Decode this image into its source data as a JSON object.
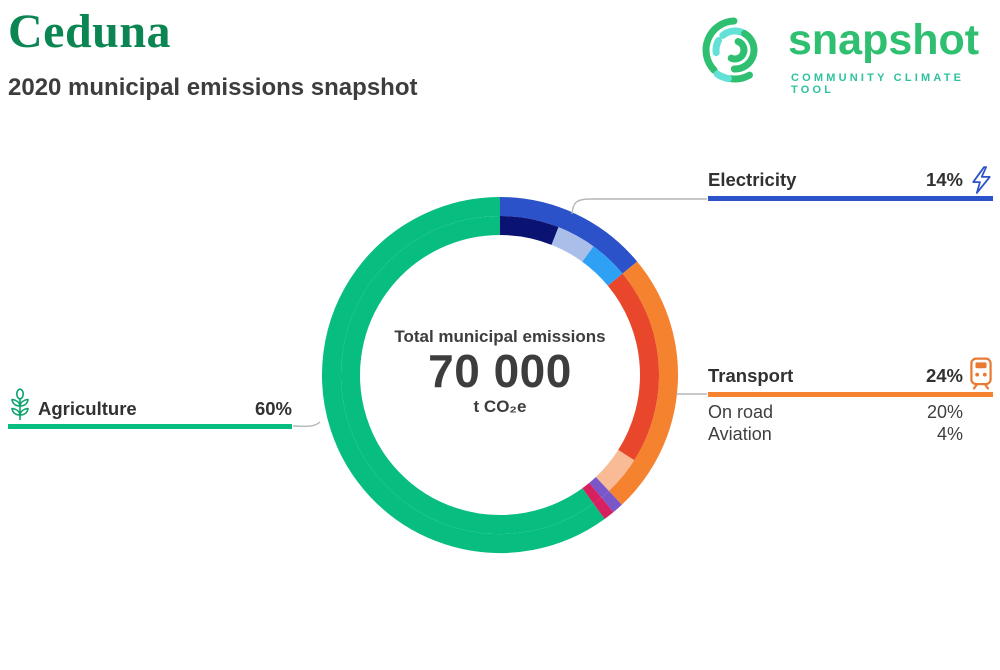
{
  "header": {
    "title": "Ceduna",
    "subtitle": "2020 municipal emissions snapshot",
    "title_color": "#0b8551"
  },
  "logo": {
    "word": "snapshot",
    "tagline": "COMMUNITY CLIMATE TOOL",
    "green": "#2fbf71",
    "teal": "#2fc2a0",
    "icon_cyan": "#63e1d6"
  },
  "donut_center": {
    "label": "Total municipal emissions",
    "value": "70 000",
    "unit": "t CO₂e"
  },
  "callouts": {
    "electricity": {
      "name": "Electricity",
      "pct": "14%",
      "color": "#2b52c8"
    },
    "transport": {
      "name": "Transport",
      "pct": "24%",
      "color": "#f5822f",
      "subrows": [
        {
          "name": "On road",
          "pct": "20%"
        },
        {
          "name": "Aviation",
          "pct": "4%"
        }
      ]
    },
    "agriculture": {
      "name": "Agriculture",
      "pct": "60%",
      "color": "#07be80"
    }
  },
  "chart_data": {
    "type": "pie",
    "subtype": "two-ring donut",
    "title": "Total municipal emissions",
    "center_value": 70000,
    "center_unit": "t CO2e",
    "start_angle_deg": 0,
    "direction": "clockwise",
    "outer_ring": [
      {
        "label": "Electricity",
        "value_pct": 14,
        "color": "#2b52c8"
      },
      {
        "label": "Transport",
        "value_pct": 24,
        "color": "#f5822f"
      },
      {
        "label": "unlabeled small sector 1",
        "value_pct": 1,
        "color": "#7a57c9"
      },
      {
        "label": "unlabeled small sector 2",
        "value_pct": 1,
        "color": "#d6205f"
      },
      {
        "label": "Agriculture",
        "value_pct": 60,
        "color": "#07be80"
      }
    ],
    "inner_ring": [
      {
        "label": "Electricity sub 1",
        "value_pct": 6,
        "color": "#0a1272"
      },
      {
        "label": "Electricity sub 2",
        "value_pct": 4,
        "color": "#a9bee9"
      },
      {
        "label": "Electricity sub 3",
        "value_pct": 4,
        "color": "#2ea1f5"
      },
      {
        "label": "On road",
        "value_pct": 20,
        "color": "#e8472b"
      },
      {
        "label": "Aviation",
        "value_pct": 4,
        "color": "#f8bb95"
      },
      {
        "label": "unlabeled small sector 1",
        "value_pct": 1,
        "color": "#7a57c9"
      },
      {
        "label": "unlabeled small sector 2",
        "value_pct": 1,
        "color": "#d6205f"
      },
      {
        "label": "Agriculture",
        "value_pct": 60,
        "color": "#07be80"
      }
    ]
  }
}
